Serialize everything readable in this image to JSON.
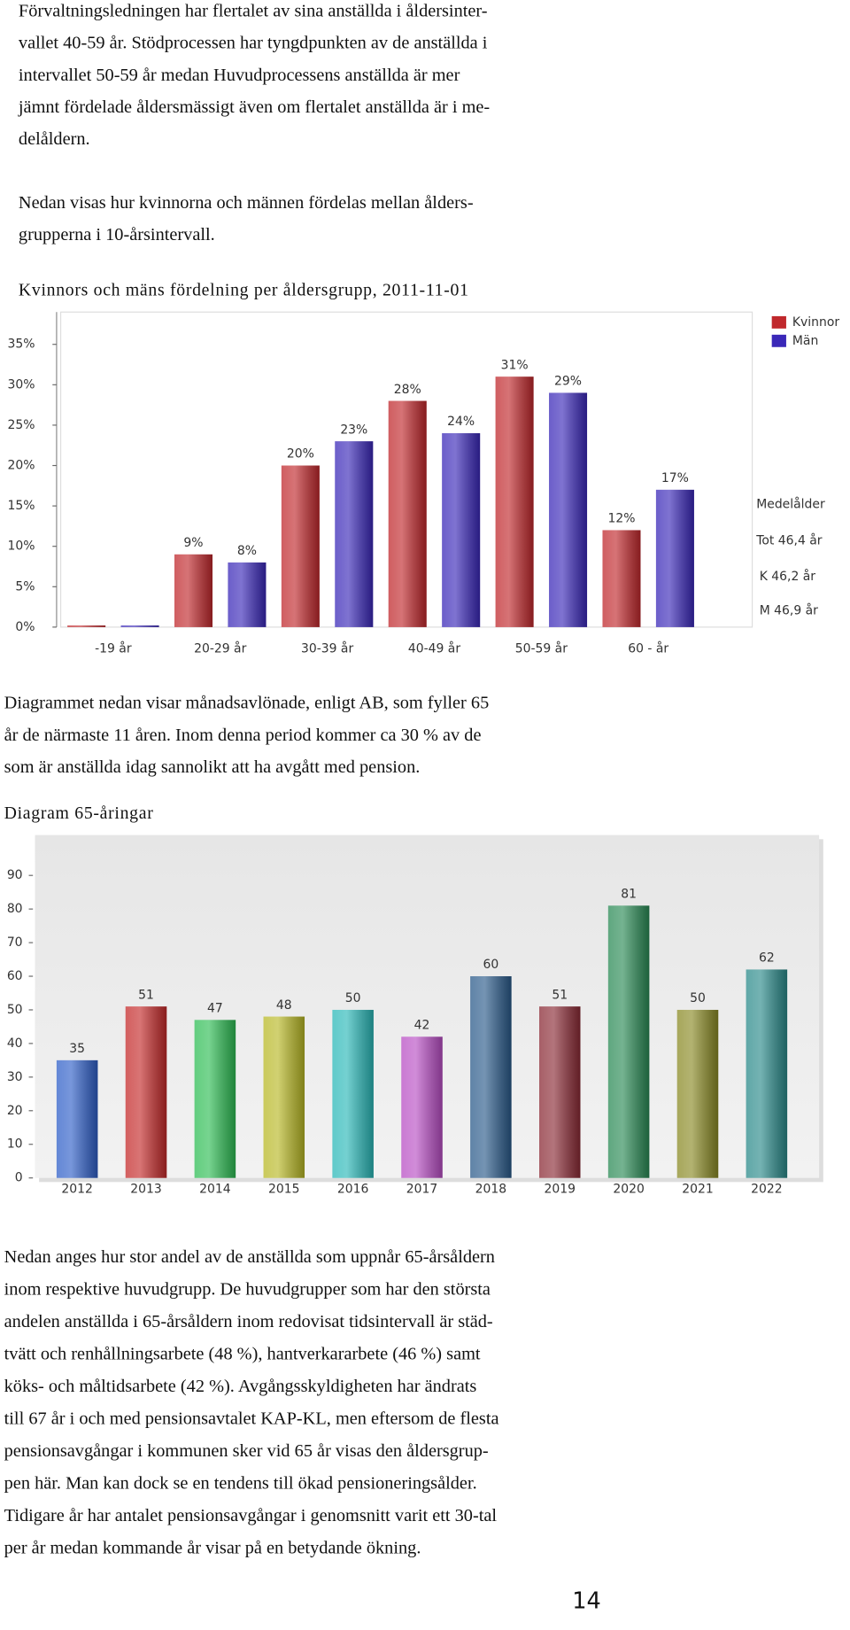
{
  "paragraphs": [
    [
      "Förvaltningsledningen har flertalet av sina anställda i åldersinter-",
      "vallet 40-59 år. Stödprocessen har tyngdpunkten av de anställda i",
      "intervallet 50-59 år medan Huvudprocessens anställda är mer",
      "jämnt fördelade åldersmässigt även om flertalet anställda är i me-",
      "delåldern."
    ],
    [
      "Nedan visas hur kvinnorna och männen fördelas mellan ålders-",
      "grupperna i 10-årsintervall."
    ],
    [
      "Diagrammet nedan visar månadsavlönade, enligt AB, som fyller 65",
      "år de närmaste 11 åren. Inom denna period kommer ca 30 % av de",
      "som är anställda idag sannolikt att ha avgått med pension."
    ],
    [
      "Nedan anges hur stor andel av de anställda som uppnår 65-årsåldern",
      "inom respektive huvudgrupp. De huvudgrupper som har den största",
      "andelen anställda i 65-årsåldern inom redovisat tidsintervall är städ-",
      "tvätt och renhållningsarbete (48 %), hantverkararbete (46 %) samt",
      "köks- och måltidsarbete (42 %). Avgångsskyldigheten har ändrats",
      "till 67 år i och med pensionsavtalet KAP-KL, men eftersom de flesta",
      "pensionsavgångar i kommunen sker vid 65 år visas den åldersgrup-",
      "pen här. Man kan dock se en tendens till ökad pensioneringsålder.",
      "Tidigare år har antalet pensionsavgångar i genomsnitt varit ett 30-tal",
      "per år medan kommande år visar på en betydande ökning."
    ]
  ],
  "chart_data": [
    {
      "type": "bar",
      "title": "Kvinnors och mäns fördelning per åldersgrupp, 2011-11-01",
      "categories": [
        "-19 år",
        "20-29 år",
        "30-39 år",
        "40-49 år",
        "50-59 år",
        "60 - år"
      ],
      "series": [
        {
          "name": "Kvinnor",
          "color": "#c0282c",
          "values": [
            0.2,
            9,
            20,
            28,
            31,
            12
          ],
          "value_labels": [
            null,
            "9%",
            "20%",
            "28%",
            "31%",
            "12%"
          ]
        },
        {
          "name": "Män",
          "color": "#3a28b8",
          "values": [
            0.2,
            8,
            23,
            24,
            29,
            17
          ],
          "value_labels": [
            null,
            "8%",
            "23%",
            "24%",
            "29%",
            "17%"
          ]
        }
      ],
      "ylim": [
        0,
        39
      ],
      "yticks": [
        {
          "value": 0,
          "label": "0%"
        },
        {
          "value": 5,
          "label": "5%"
        },
        {
          "value": 10,
          "label": "10%"
        },
        {
          "value": 15,
          "label": "15%"
        },
        {
          "value": 20,
          "label": "20%"
        },
        {
          "value": 25,
          "label": "25%"
        },
        {
          "value": 30,
          "label": "30%"
        },
        {
          "value": 35,
          "label": "35%"
        }
      ],
      "legend": "top-right",
      "annotations": [
        "Medelålder",
        "Tot 46,4 år",
        "K 46,2 år",
        "M 46,9 år"
      ]
    },
    {
      "type": "bar",
      "title": "Diagram 65-åringar",
      "categories": [
        "2012",
        "2013",
        "2014",
        "2015",
        "2016",
        "2017",
        "2018",
        "2019",
        "2020",
        "2021",
        "2022"
      ],
      "values": [
        35,
        51,
        47,
        48,
        50,
        42,
        60,
        51,
        81,
        50,
        62
      ],
      "colors": [
        "#2f5fc8",
        "#c42a2a",
        "#2ebd54",
        "#b8b825",
        "#2ab8b8",
        "#b84ec4",
        "#2a5a8a",
        "#8a2a35",
        "#2a8a55",
        "#8a8a25",
        "#2a8a8a"
      ],
      "ylim": [
        0,
        102
      ],
      "yticks": [
        0,
        10,
        20,
        30,
        40,
        50,
        60,
        70,
        80,
        90
      ]
    }
  ],
  "page_number": "14"
}
